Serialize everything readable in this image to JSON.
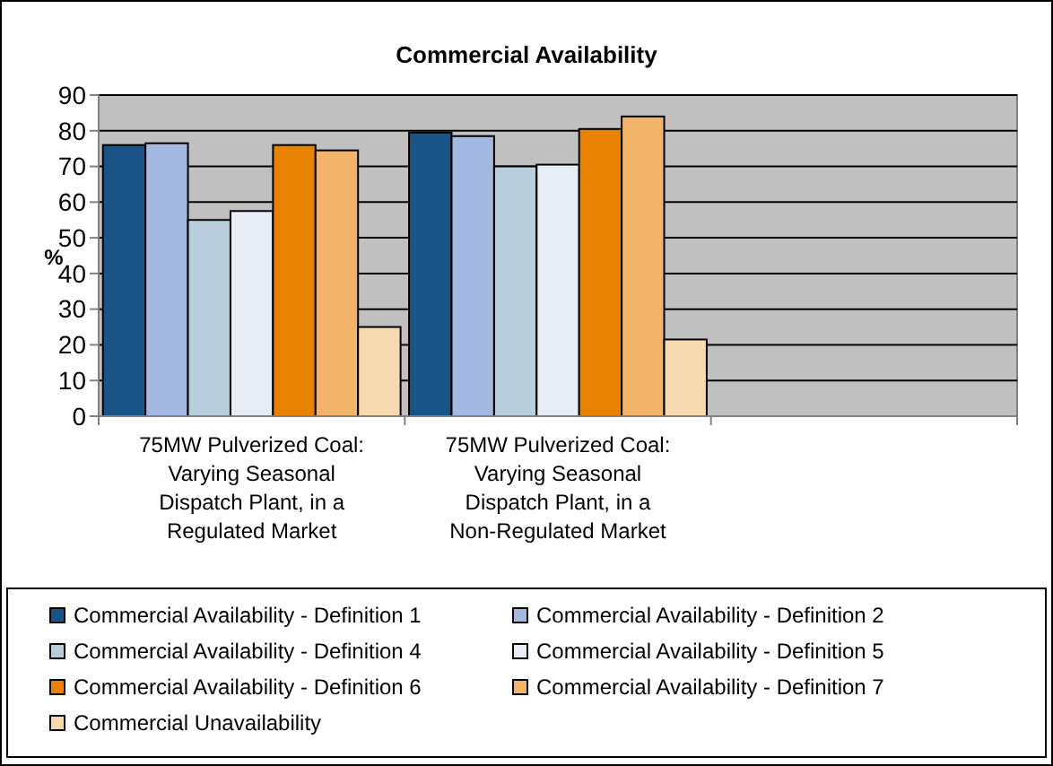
{
  "chart_data": {
    "type": "bar",
    "title": "Commercial Availability",
    "ylabel": "%",
    "categories": [
      "75MW Pulverized Coal: Varying Seasonal Dispatch Plant, in a Regulated Market",
      "75MW Pulverized Coal: Varying Seasonal Dispatch Plant, in a Non-Regulated Market",
      null
    ],
    "series": [
      {
        "name": "Commercial Availability - Definition 1",
        "color": "#1a5486",
        "values": [
          76,
          79.5,
          null
        ]
      },
      {
        "name": "Commercial Availability - Definition 2",
        "color": "#a3b9e0",
        "values": [
          76.5,
          78.5,
          null
        ]
      },
      {
        "name": "Commercial Availability - Definition 4",
        "color": "#b9cddb",
        "values": [
          55,
          70,
          null
        ]
      },
      {
        "name": "Commercial Availability - Definition 5",
        "color": "#e8edf5",
        "values": [
          57.5,
          70.5,
          null
        ]
      },
      {
        "name": "Commercial Availability - Definition 6",
        "color": "#e88200",
        "values": [
          76,
          80.5,
          null
        ]
      },
      {
        "name": "Commercial Availability - Definition 7",
        "color": "#f2b46a",
        "values": [
          74.5,
          84,
          null
        ]
      },
      {
        "name": "Commercial Unavailability",
        "color": "#f8dab0",
        "values": [
          25,
          21.5,
          null
        ]
      }
    ],
    "ylim": [
      0,
      90
    ],
    "yticks": [
      0,
      10,
      20,
      30,
      40,
      50,
      60,
      70,
      80,
      90
    ],
    "grid": "y",
    "legend": "bottom"
  }
}
